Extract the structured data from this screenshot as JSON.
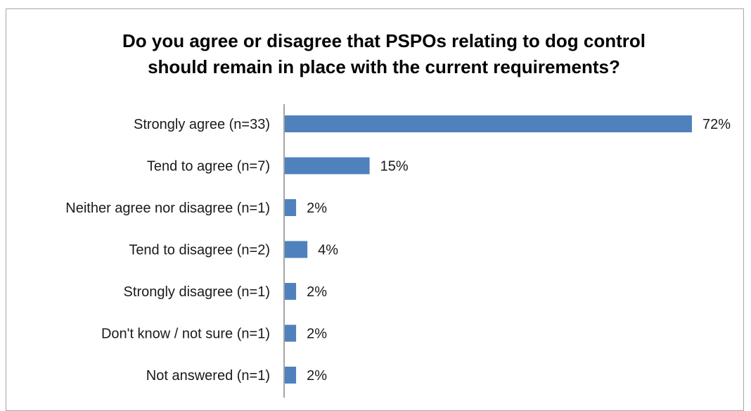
{
  "chart_data": {
    "type": "bar",
    "orientation": "horizontal",
    "title_lines": [
      "Do you agree or disagree that PSPOs relating to dog control",
      "should remain in place with the current requirements?"
    ],
    "categories": [
      "Strongly agree (n=33)",
      "Tend to agree (n=7)",
      "Neither agree nor disagree (n=1)",
      "Tend to disagree (n=2)",
      "Strongly disagree (n=1)",
      "Don't know / not sure (n=1)",
      "Not answered (n=1)"
    ],
    "values": [
      72,
      15,
      2,
      4,
      2,
      2,
      2
    ],
    "value_labels": [
      "72%",
      "15%",
      "2%",
      "4%",
      "2%",
      "2%",
      "2%"
    ],
    "unit": "%",
    "xlim": [
      0,
      72
    ],
    "grid": false,
    "legend": "none",
    "colors": {
      "bar": "#4f81bd",
      "axis": "#868686"
    }
  }
}
